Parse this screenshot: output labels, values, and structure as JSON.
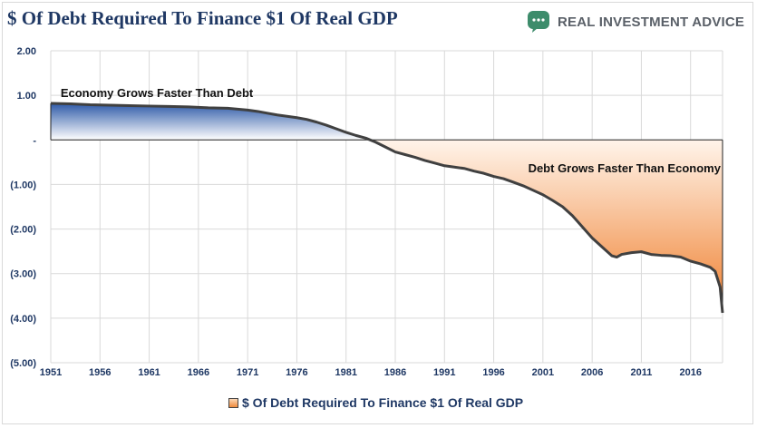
{
  "header": {
    "title": "$ Of Debt Required To Finance $1 Of Real GDP",
    "brand_name": "REAL INVESTMENT ADVICE",
    "brand_icon": "chart-bubble-icon",
    "brand_color": "#3d8c6b"
  },
  "chart_data": {
    "type": "area",
    "title": "$ Of Debt Required To Finance $1 Of Real GDP",
    "xlabel": "",
    "ylabel": "",
    "xlim": [
      1951,
      2019.25
    ],
    "ylim": [
      -5,
      2
    ],
    "x_ticks": [
      1951,
      1956,
      1961,
      1966,
      1971,
      1976,
      1981,
      1986,
      1991,
      1996,
      2001,
      2006,
      2011,
      2016
    ],
    "x_tick_labels": [
      "1951",
      "1956",
      "1961",
      "1966",
      "1971",
      "1976",
      "1981",
      "1986",
      "1991",
      "1996",
      "2001",
      "2006",
      "2011",
      "2016"
    ],
    "y_ticks": [
      2,
      1,
      0,
      -1,
      -2,
      -3,
      -4,
      -5
    ],
    "y_tick_labels": [
      "2.00",
      "1.00",
      "-",
      "(1.00)",
      "(2.00)",
      "(3.00)",
      "(4.00)",
      "(5.00)"
    ],
    "grid": true,
    "legend_position": "bottom",
    "series": [
      {
        "name": "$ Of Debt Required To Finance $1 Of Real GDP",
        "x": [
          1951,
          1953,
          1955,
          1957,
          1959,
          1961,
          1963,
          1965,
          1967,
          1969,
          1971,
          1972,
          1973,
          1974,
          1975,
          1976,
          1977,
          1978,
          1979,
          1980,
          1981,
          1982,
          1983,
          1984,
          1985,
          1986,
          1987,
          1988,
          1989,
          1990,
          1991,
          1992,
          1993,
          1994,
          1995,
          1996,
          1997,
          1998,
          1999,
          2000,
          2001,
          2002,
          2003,
          2004,
          2005,
          2006,
          2007,
          2008,
          2008.5,
          2009,
          2010,
          2011,
          2012,
          2013,
          2014,
          2015,
          2016,
          2017,
          2018,
          2018.5,
          2019,
          2019.25
        ],
        "values": [
          0.82,
          0.81,
          0.79,
          0.78,
          0.77,
          0.76,
          0.75,
          0.74,
          0.72,
          0.71,
          0.67,
          0.64,
          0.6,
          0.56,
          0.53,
          0.5,
          0.46,
          0.4,
          0.33,
          0.25,
          0.17,
          0.1,
          0.04,
          -0.05,
          -0.16,
          -0.27,
          -0.33,
          -0.39,
          -0.46,
          -0.52,
          -0.58,
          -0.61,
          -0.64,
          -0.7,
          -0.75,
          -0.82,
          -0.87,
          -0.95,
          -1.03,
          -1.13,
          -1.23,
          -1.36,
          -1.5,
          -1.7,
          -1.95,
          -2.2,
          -2.4,
          -2.6,
          -2.63,
          -2.57,
          -2.53,
          -2.51,
          -2.57,
          -2.59,
          -2.6,
          -2.63,
          -2.72,
          -2.78,
          -2.86,
          -2.95,
          -3.3,
          -3.88
        ]
      }
    ],
    "annotations": [
      {
        "text": "Economy Grows Faster Than Debt",
        "x": 1952,
        "y": 1.0
      },
      {
        "text": "Debt Grows Faster Than Economy",
        "x": 1999.5,
        "y": -0.69
      }
    ],
    "colors": {
      "positive_fill_top": "#2e5aa8",
      "positive_fill_bottom": "#ffffff",
      "negative_fill_top": "#fff4ea",
      "negative_fill_bottom": "#ef7f2e",
      "line": "#404040",
      "grid": "#d9d9d9",
      "tick_text": "#1f3864"
    }
  },
  "legend": {
    "label": "$ Of Debt Required To Finance $1 Of Real GDP",
    "swatch_icon": "orange-square-icon"
  }
}
